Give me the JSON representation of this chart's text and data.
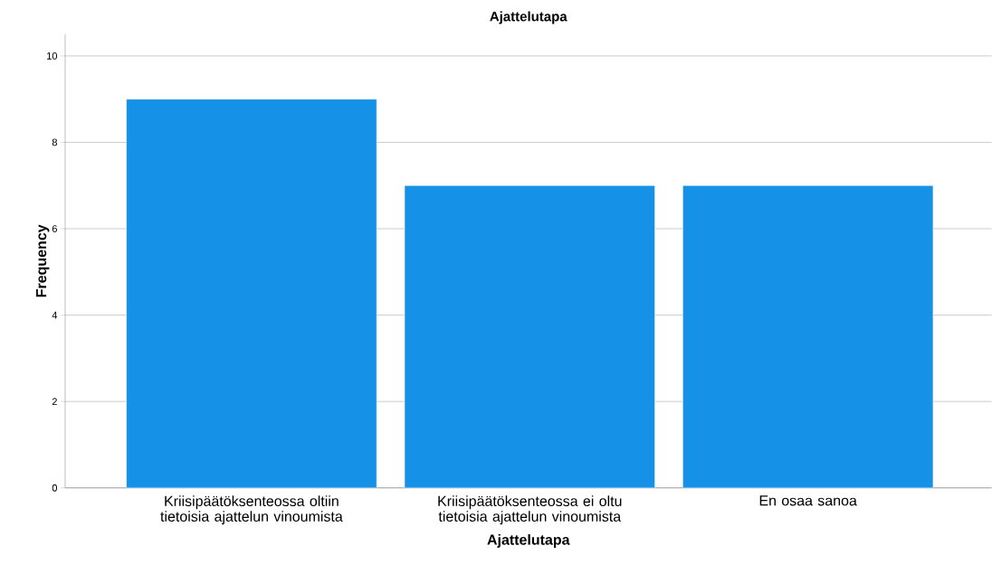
{
  "chart_data": {
    "type": "bar",
    "title": "Ajattelutapa",
    "xlabel": "Ajattelutapa",
    "ylabel": "Frequency",
    "categories": [
      "Kriisipäätöksenteossa oltiin tietoisia ajattelun vinoumista",
      "Kriisipäätöksenteossa ei oltu tietoisia ajattelun vinoumista",
      "En osaa sanoa"
    ],
    "values": [
      9,
      7,
      7
    ],
    "color": "#1591e8",
    "ylim": [
      0,
      10.5
    ],
    "yticks": [
      0,
      2,
      4,
      6,
      8,
      10
    ],
    "grid": "y"
  }
}
